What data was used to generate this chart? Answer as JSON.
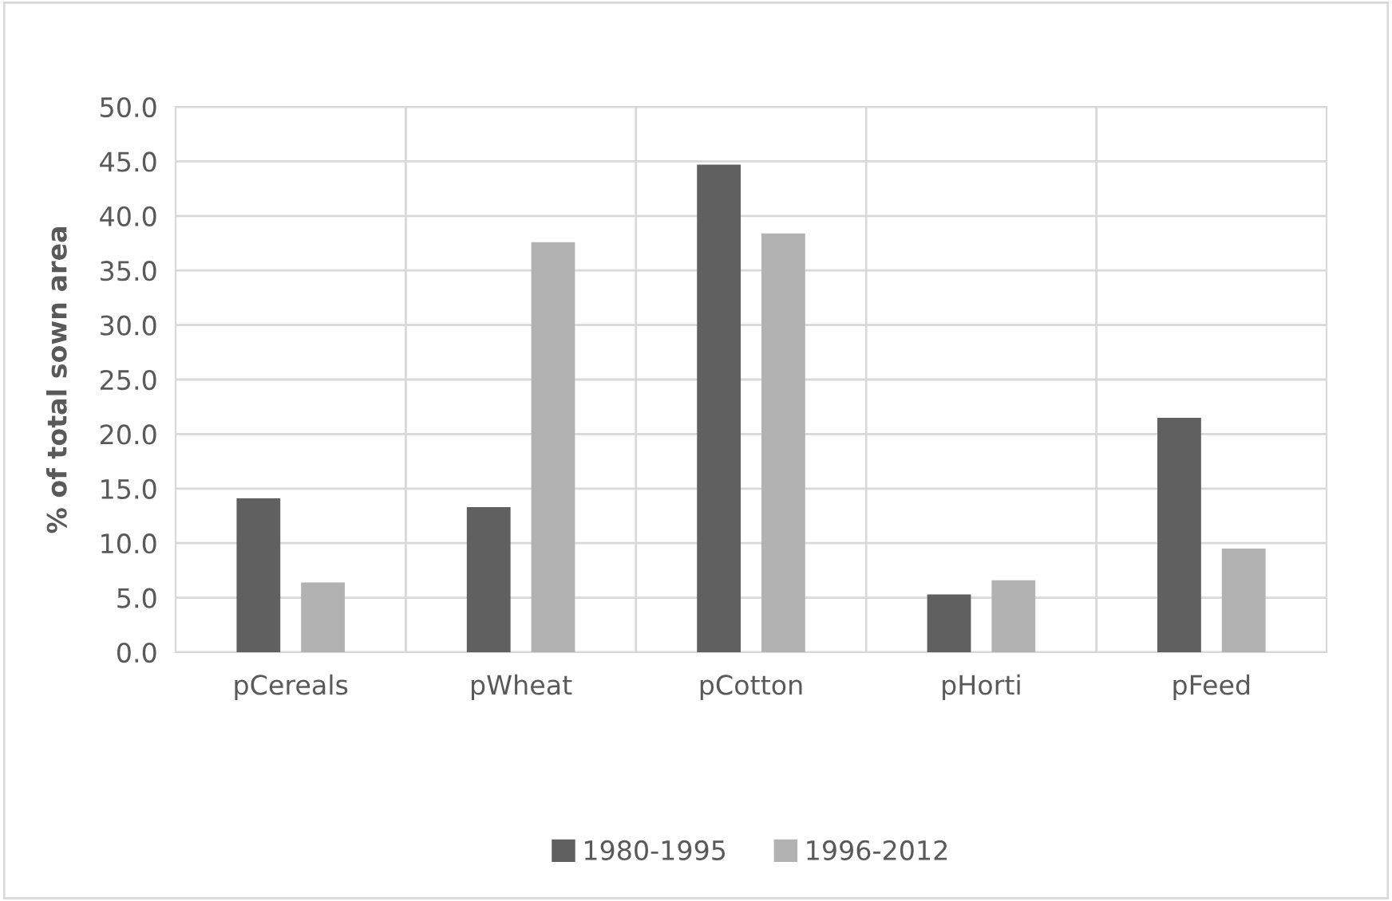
{
  "chart_data": {
    "type": "bar",
    "ylabel": "% of total sown area",
    "categories": [
      "pCereals",
      "pWheat",
      "pCotton",
      "pHorti",
      "pFeed"
    ],
    "series": [
      {
        "name": "1980-1995",
        "color": "#606060",
        "values": [
          14.1,
          13.3,
          44.7,
          5.3,
          21.5
        ]
      },
      {
        "name": "1996-2012",
        "color": "#b2b2b2",
        "values": [
          6.4,
          37.6,
          38.4,
          6.6,
          9.5
        ]
      }
    ],
    "ylim": [
      0,
      50
    ],
    "yticks": [
      {
        "value": 0,
        "label": "0.0"
      },
      {
        "value": 5,
        "label": "5.0"
      },
      {
        "value": 10,
        "label": "10.0"
      },
      {
        "value": 15,
        "label": "15.0"
      },
      {
        "value": 20,
        "label": "20.0"
      },
      {
        "value": 25,
        "label": "25.0"
      },
      {
        "value": 30,
        "label": "30.0"
      },
      {
        "value": 35,
        "label": "35.0"
      },
      {
        "value": 40,
        "label": "40.0"
      },
      {
        "value": 45,
        "label": "45.0"
      },
      {
        "value": 50,
        "label": "50.0"
      }
    ],
    "grid": true,
    "legend": "bottom"
  }
}
